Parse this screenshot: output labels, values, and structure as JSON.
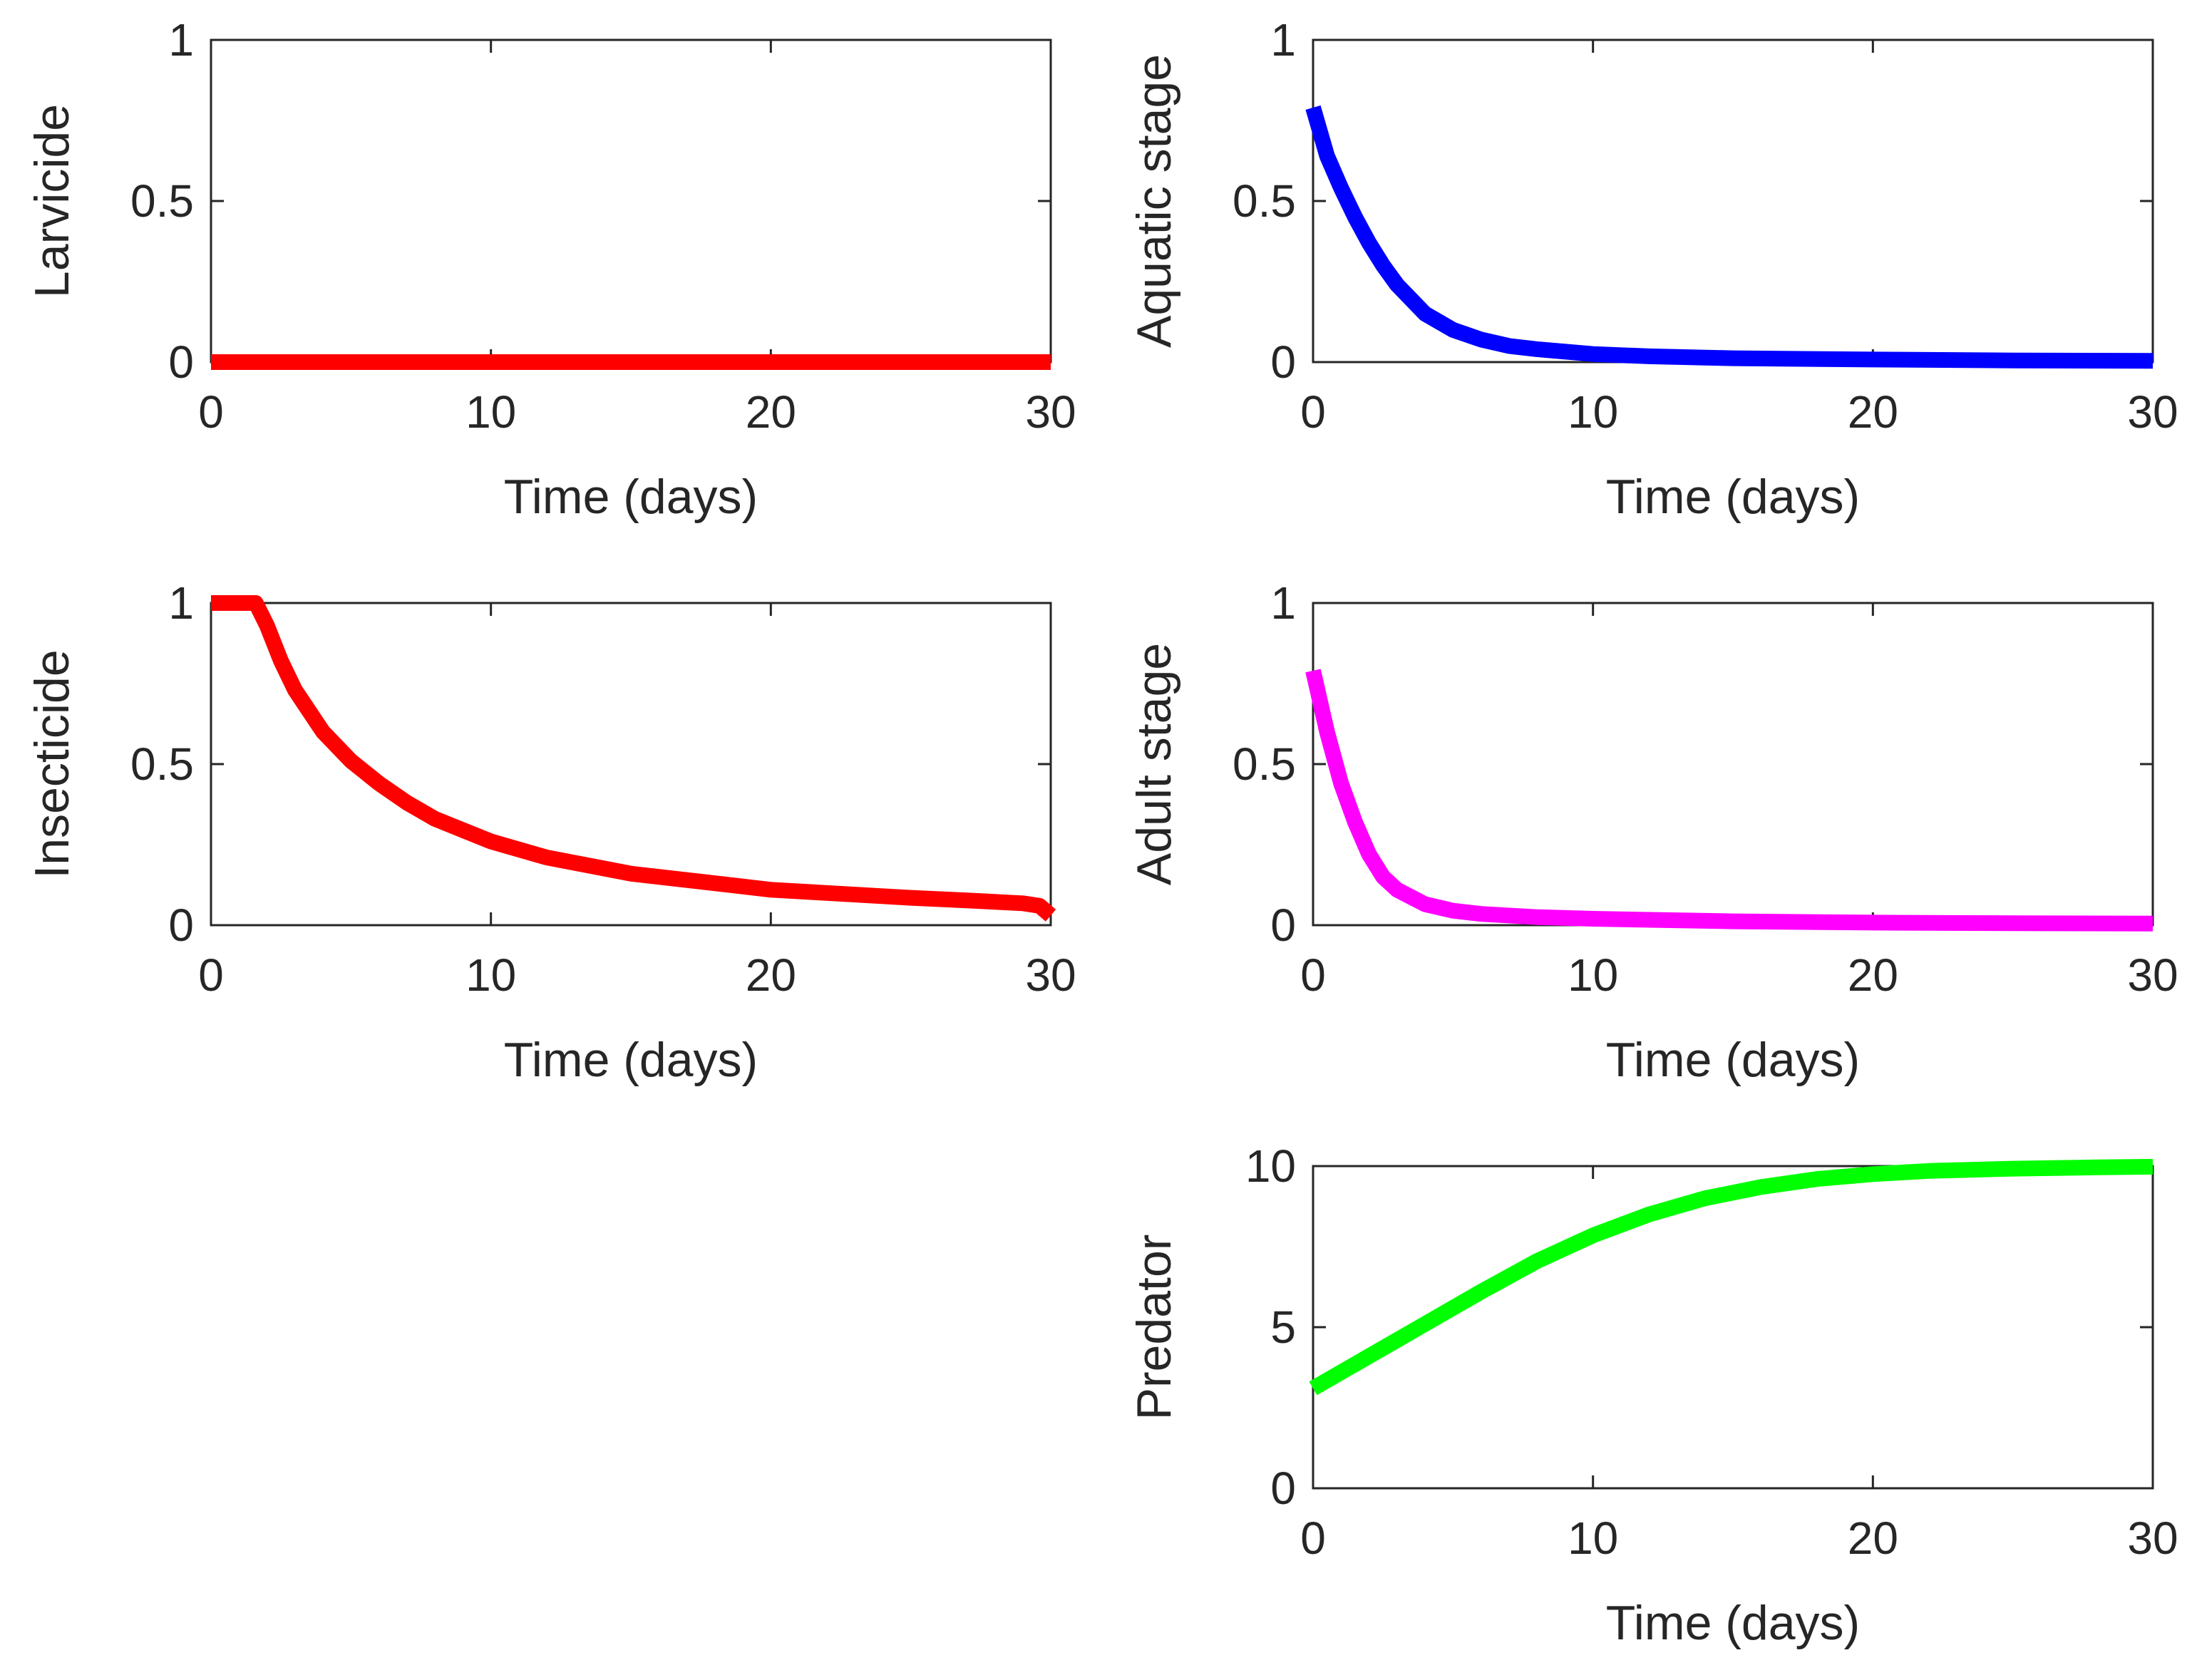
{
  "chart_data": [
    {
      "id": "larvicide",
      "type": "line",
      "title": "",
      "xlabel": "Time (days)",
      "ylabel": "Larvicide",
      "xlim": [
        0,
        30
      ],
      "ylim": [
        0,
        1
      ],
      "xticks": [
        0,
        10,
        20,
        30
      ],
      "yticks": [
        0,
        0.5,
        1
      ],
      "xtick_labels": [
        "0",
        "10",
        "20",
        "30"
      ],
      "ytick_labels": [
        "0",
        "0.5",
        "1"
      ],
      "grid": false,
      "series": [
        {
          "name": "Larvicide",
          "color": "#ff0000",
          "x": [
            0,
            5,
            10,
            15,
            20,
            25,
            30
          ],
          "y": [
            0,
            0,
            0,
            0,
            0,
            0,
            0
          ]
        }
      ]
    },
    {
      "id": "aquatic-stage",
      "type": "line",
      "title": "",
      "xlabel": "Time (days)",
      "ylabel": "Aquatic stage",
      "xlim": [
        0,
        30
      ],
      "ylim": [
        0,
        1
      ],
      "xticks": [
        0,
        10,
        20,
        30
      ],
      "yticks": [
        0,
        0.5,
        1
      ],
      "xtick_labels": [
        "0",
        "10",
        "20",
        "30"
      ],
      "ytick_labels": [
        "0",
        "0.5",
        "1"
      ],
      "grid": false,
      "series": [
        {
          "name": "Aquatic stage",
          "color": "#0000ff",
          "x": [
            0,
            0.5,
            1,
            1.5,
            2,
            2.5,
            3,
            4,
            5,
            6,
            7,
            8,
            10,
            12,
            15,
            20,
            25,
            30
          ],
          "y": [
            0.79,
            0.64,
            0.54,
            0.45,
            0.37,
            0.3,
            0.24,
            0.15,
            0.1,
            0.07,
            0.05,
            0.04,
            0.025,
            0.018,
            0.012,
            0.008,
            0.005,
            0.004
          ]
        }
      ]
    },
    {
      "id": "insecticide",
      "type": "line",
      "title": "",
      "xlabel": "Time (days)",
      "ylabel": "Insecticide",
      "xlim": [
        0,
        30
      ],
      "ylim": [
        0,
        1
      ],
      "xticks": [
        0,
        10,
        20,
        30
      ],
      "yticks": [
        0,
        0.5,
        1
      ],
      "xtick_labels": [
        "0",
        "10",
        "20",
        "30"
      ],
      "ytick_labels": [
        "0",
        "0.5",
        "1"
      ],
      "grid": false,
      "series": [
        {
          "name": "Insecticide",
          "color": "#ff0000",
          "x": [
            0,
            1,
            1.6,
            2,
            2.5,
            3,
            4,
            5,
            6,
            7,
            8,
            10,
            12,
            15,
            18,
            20,
            22,
            25,
            27,
            29,
            29.6,
            30
          ],
          "y": [
            1,
            1,
            1,
            0.93,
            0.82,
            0.73,
            0.6,
            0.51,
            0.44,
            0.38,
            0.33,
            0.26,
            0.21,
            0.16,
            0.13,
            0.11,
            0.1,
            0.085,
            0.077,
            0.068,
            0.06,
            0.03
          ]
        }
      ]
    },
    {
      "id": "adult-stage",
      "type": "line",
      "title": "",
      "xlabel": "Time (days)",
      "ylabel": "Adult stage",
      "xlim": [
        0,
        30
      ],
      "ylim": [
        0,
        1
      ],
      "xticks": [
        0,
        10,
        20,
        30
      ],
      "yticks": [
        0,
        0.5,
        1
      ],
      "xtick_labels": [
        "0",
        "10",
        "20",
        "30"
      ],
      "ytick_labels": [
        "0",
        "0.5",
        "1"
      ],
      "grid": false,
      "series": [
        {
          "name": "Adult stage",
          "color": "#ff00ff",
          "x": [
            0,
            0.5,
            1,
            1.5,
            2,
            2.5,
            3,
            4,
            5,
            6,
            8,
            10,
            15,
            20,
            25,
            30
          ],
          "y": [
            0.79,
            0.6,
            0.44,
            0.32,
            0.22,
            0.15,
            0.11,
            0.065,
            0.045,
            0.035,
            0.025,
            0.02,
            0.012,
            0.008,
            0.006,
            0.005
          ]
        }
      ]
    },
    {
      "id": "predator",
      "type": "line",
      "title": "",
      "xlabel": "Time (days)",
      "ylabel": "Predator",
      "xlim": [
        0,
        30
      ],
      "ylim": [
        0,
        10
      ],
      "xticks": [
        0,
        10,
        20,
        30
      ],
      "yticks": [
        0,
        5,
        10
      ],
      "xtick_labels": [
        "0",
        "10",
        "20",
        "30"
      ],
      "ytick_labels": [
        "0",
        "5",
        "10"
      ],
      "grid": false,
      "series": [
        {
          "name": "Predator",
          "color": "#00ff00",
          "x": [
            0,
            2,
            4,
            6,
            8,
            10,
            12,
            14,
            16,
            18,
            20,
            22,
            25,
            28,
            30
          ],
          "y": [
            3.1,
            4.1,
            5.1,
            6.1,
            7.05,
            7.85,
            8.5,
            9.0,
            9.35,
            9.6,
            9.75,
            9.85,
            9.92,
            9.96,
            9.98
          ]
        }
      ]
    }
  ]
}
